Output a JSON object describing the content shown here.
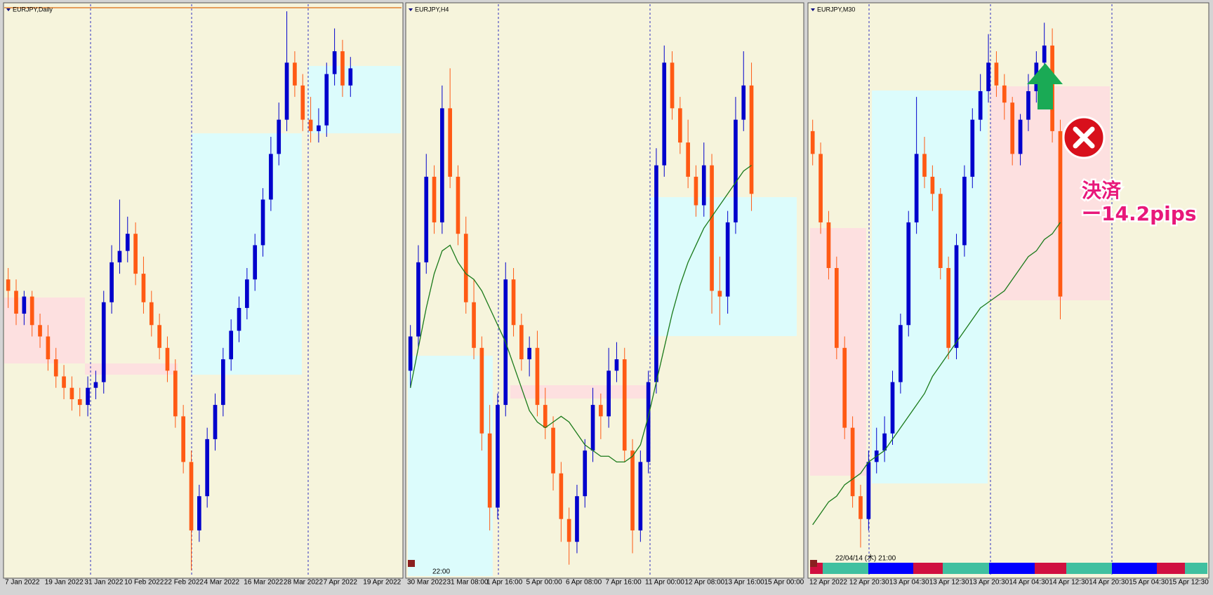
{
  "chart_data": [
    {
      "type": "candlestick",
      "title": "EURJPY,Daily",
      "categories": [
        "7 Jan 2022",
        null,
        null,
        null,
        null,
        "19 Jan 2022",
        null,
        null,
        null,
        null,
        "31 Jan 2022",
        null,
        null,
        null,
        null,
        "10 Feb 2022",
        null,
        null,
        null,
        null,
        "22 Feb 2022",
        null,
        null,
        null,
        null,
        "4 Mar 2022",
        null,
        null,
        null,
        null,
        "16 Mar 2022",
        null,
        null,
        null,
        null,
        "28 Mar 2022",
        null,
        null,
        null,
        null,
        "7 Apr 2022",
        null,
        null,
        null,
        null,
        "19 Apr 2022",
        null,
        null,
        null,
        null
      ],
      "open": [
        52,
        50,
        46,
        49,
        44,
        42,
        38,
        35,
        33,
        31,
        30,
        33,
        34,
        48,
        55,
        57,
        60,
        53,
        48,
        44,
        40,
        36,
        28,
        20,
        8,
        14,
        24,
        30,
        38,
        43,
        47,
        52,
        58,
        66,
        74,
        80,
        90,
        86,
        80,
        78,
        79,
        88,
        92,
        86,
        null,
        null,
        null,
        null,
        null,
        null
      ],
      "high": [
        54,
        52,
        50,
        50,
        46,
        44,
        40,
        37,
        35,
        33,
        35,
        36,
        50,
        58,
        66,
        63,
        62,
        56,
        50,
        46,
        42,
        38,
        30,
        22,
        16,
        26,
        32,
        40,
        45,
        49,
        54,
        60,
        68,
        77,
        83,
        99,
        92,
        88,
        84,
        82,
        90,
        96,
        94,
        91,
        null,
        null,
        null,
        null,
        null,
        null
      ],
      "low": [
        47,
        44,
        44,
        42,
        40,
        36,
        33,
        31,
        29,
        28,
        28,
        31,
        32,
        46,
        53,
        55,
        51,
        46,
        42,
        38,
        34,
        26,
        18,
        1,
        6,
        12,
        22,
        28,
        36,
        41,
        45,
        50,
        56,
        64,
        72,
        78,
        84,
        78,
        76,
        76,
        77,
        86,
        84,
        84,
        null,
        null,
        null,
        null,
        null,
        null
      ],
      "close": [
        50,
        46,
        49,
        44,
        42,
        38,
        35,
        33,
        31,
        30,
        33,
        34,
        48,
        55,
        57,
        60,
        53,
        48,
        44,
        40,
        36,
        28,
        20,
        8,
        14,
        24,
        30,
        38,
        43,
        47,
        52,
        58,
        66,
        74,
        80,
        90,
        86,
        80,
        78,
        79,
        88,
        92,
        86,
        89,
        null,
        null,
        null,
        null,
        null,
        null
      ],
      "up_color": "#0000cc",
      "down_color": "#ff5a14",
      "ylim": [
        0,
        100
      ]
    },
    {
      "type": "candlestick",
      "title": "EURJPY,H4",
      "time_label": "22:00",
      "categories": [
        "30 Mar 2022",
        null,
        null,
        null,
        null,
        "31 Mar 08:00",
        null,
        null,
        null,
        null,
        "1 Apr 16:00",
        null,
        null,
        null,
        null,
        "5 Apr 00:00",
        null,
        null,
        null,
        null,
        "6 Apr 08:00",
        null,
        null,
        null,
        null,
        "7 Apr 16:00",
        null,
        null,
        null,
        null,
        "11 Apr 00:00",
        null,
        null,
        null,
        null,
        "12 Apr 08:00",
        null,
        null,
        null,
        null,
        "13 Apr 16:00",
        null,
        null,
        null,
        null,
        "15 Apr 00:00",
        null,
        null,
        null,
        null
      ],
      "open": [
        36,
        42,
        55,
        70,
        62,
        82,
        70,
        60,
        48,
        40,
        25,
        12,
        30,
        52,
        44,
        38,
        40,
        30,
        26,
        18,
        10,
        6,
        14,
        22,
        30,
        28,
        36,
        38,
        22,
        8,
        20,
        34,
        72,
        90,
        82,
        76,
        70,
        65,
        72,
        50,
        49,
        62,
        80,
        86,
        null,
        null,
        null,
        null,
        null,
        null
      ],
      "high": [
        44,
        58,
        74,
        72,
        86,
        89,
        72,
        63,
        52,
        42,
        30,
        32,
        55,
        54,
        46,
        42,
        43,
        33,
        28,
        20,
        12,
        16,
        24,
        33,
        32,
        40,
        41,
        40,
        24,
        22,
        36,
        75,
        93,
        92,
        84,
        80,
        72,
        76,
        74,
        56,
        64,
        84,
        92,
        90,
        null,
        null,
        null,
        null,
        null,
        null
      ],
      "low": [
        33,
        40,
        53,
        60,
        60,
        68,
        58,
        46,
        38,
        22,
        8,
        10,
        28,
        42,
        36,
        35,
        28,
        24,
        15,
        6,
        2,
        4,
        12,
        20,
        24,
        26,
        34,
        20,
        4,
        6,
        18,
        32,
        70,
        80,
        74,
        68,
        63,
        63,
        46,
        44,
        46,
        60,
        78,
        64,
        null,
        null,
        null,
        null,
        null,
        null
      ],
      "close": [
        42,
        55,
        70,
        62,
        82,
        70,
        60,
        48,
        40,
        25,
        12,
        30,
        52,
        44,
        38,
        40,
        30,
        26,
        18,
        10,
        6,
        14,
        22,
        30,
        28,
        36,
        38,
        22,
        8,
        20,
        34,
        72,
        90,
        82,
        76,
        70,
        65,
        72,
        50,
        49,
        62,
        80,
        86,
        67,
        null,
        null,
        null,
        null,
        null,
        null
      ],
      "ma": {
        "color": "#1a7a1a",
        "values": [
          33,
          40,
          47,
          53,
          57,
          58,
          55,
          53,
          52,
          50,
          47,
          44,
          41,
          37,
          33,
          29,
          27,
          26,
          27,
          28,
          27,
          25,
          23,
          22,
          21,
          21,
          20,
          20,
          21,
          23,
          28,
          34,
          40,
          46,
          51,
          55,
          58,
          61,
          63,
          65,
          67,
          69,
          71,
          72,
          null,
          null,
          null,
          null,
          null,
          null
        ]
      },
      "up_color": "#0000cc",
      "down_color": "#ff5a14",
      "ylim": [
        0,
        100
      ]
    },
    {
      "type": "candlestick",
      "title": "EURJPY,M30",
      "time_label": "22/04/14 (木) 21:00",
      "annotations": [
        "決済",
        "ー14.2pips"
      ],
      "categories": [
        "12 Apr 2022",
        null,
        null,
        null,
        null,
        "12 Apr 20:30",
        null,
        null,
        null,
        null,
        "13 Apr 04:30",
        null,
        null,
        null,
        null,
        "13 Apr 12:30",
        null,
        null,
        null,
        null,
        "13 Apr 20:30",
        null,
        null,
        null,
        null,
        "14 Apr 04:30",
        null,
        null,
        null,
        null,
        "14 Apr 12:30",
        null,
        null,
        null,
        null,
        "14 Apr 20:30",
        null,
        null,
        null,
        null,
        "15 Apr 04:30",
        null,
        null,
        null,
        null,
        "15 Apr 12:30",
        null,
        null,
        null,
        null
      ],
      "open": [
        78,
        74,
        62,
        54,
        40,
        26,
        14,
        10,
        20,
        22,
        25,
        34,
        44,
        62,
        74,
        70,
        67,
        54,
        40,
        58,
        70,
        80,
        85,
        90,
        86,
        83,
        74,
        80,
        85,
        90,
        93,
        78,
        null,
        null,
        null,
        null,
        null,
        null,
        null,
        null,
        null,
        null,
        null,
        null,
        null,
        null,
        null,
        null,
        null,
        null
      ],
      "high": [
        80,
        76,
        64,
        56,
        42,
        28,
        16,
        22,
        26,
        28,
        36,
        46,
        64,
        84,
        77,
        72,
        68,
        56,
        60,
        72,
        82,
        88,
        95,
        92,
        88,
        84,
        81,
        88,
        92,
        97,
        96,
        80,
        null,
        null,
        null,
        null,
        null,
        null,
        null,
        null,
        null,
        null,
        null,
        null,
        null,
        null,
        null,
        null,
        null,
        null
      ],
      "low": [
        72,
        60,
        52,
        38,
        24,
        12,
        5,
        8,
        18,
        20,
        23,
        32,
        42,
        60,
        68,
        64,
        52,
        38,
        38,
        56,
        68,
        78,
        83,
        84,
        80,
        72,
        72,
        78,
        83,
        88,
        76,
        45,
        null,
        null,
        null,
        null,
        null,
        null,
        null,
        null,
        null,
        null,
        null,
        null,
        null,
        null,
        null,
        null,
        null,
        null
      ],
      "close": [
        74,
        62,
        54,
        40,
        26,
        14,
        10,
        20,
        22,
        25,
        34,
        44,
        62,
        74,
        70,
        67,
        54,
        40,
        58,
        70,
        80,
        85,
        90,
        86,
        83,
        74,
        80,
        85,
        90,
        93,
        78,
        49,
        null,
        null,
        null,
        null,
        null,
        null,
        null,
        null,
        null,
        null,
        null,
        null,
        null,
        null,
        null,
        null,
        null,
        null
      ],
      "ma": {
        "color": "#1a7a1a",
        "values": [
          9,
          11,
          13,
          14,
          16,
          17,
          18,
          20,
          21,
          22,
          24,
          26,
          28,
          30,
          32,
          35,
          37,
          39,
          41,
          43,
          45,
          47,
          48,
          49,
          50,
          52,
          54,
          56,
          57,
          59,
          60,
          62,
          null,
          null,
          null,
          null,
          null,
          null,
          null,
          null,
          null,
          null,
          null,
          null,
          null,
          null,
          null,
          null,
          null,
          null
        ]
      },
      "up_color": "#0000cc",
      "down_color": "#ff5a14",
      "ylim": [
        0,
        100
      ]
    }
  ]
}
